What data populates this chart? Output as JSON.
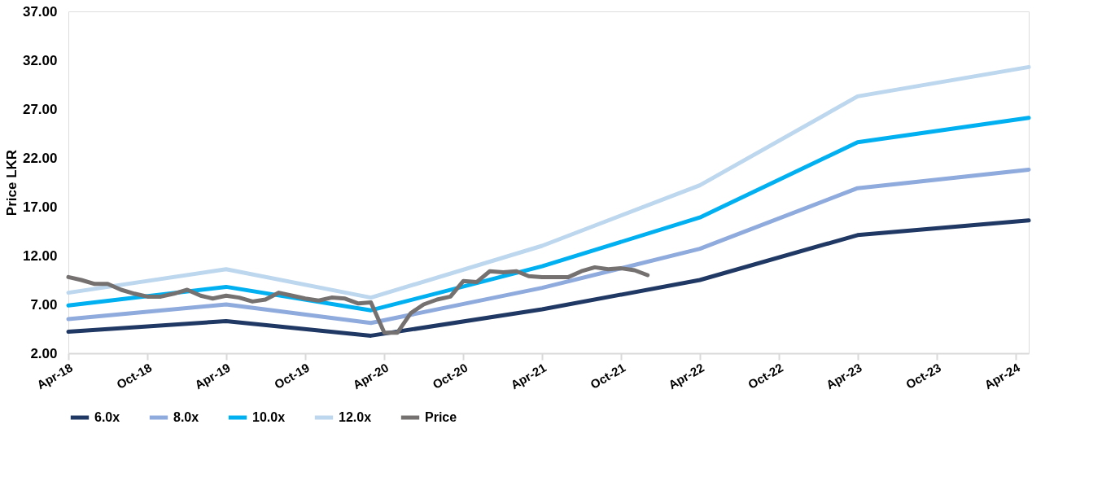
{
  "chart_data": {
    "type": "line",
    "ylabel": "Price LKR",
    "grid": false,
    "legend": "bottom",
    "xlim": [
      "2018-04",
      "2024-05"
    ],
    "xticks": [
      {
        "value": "2018-04",
        "label": "Apr-18"
      },
      {
        "value": "2018-10",
        "label": "Oct-18"
      },
      {
        "value": "2019-04",
        "label": "Apr-19"
      },
      {
        "value": "2019-10",
        "label": "Oct-19"
      },
      {
        "value": "2020-04",
        "label": "Apr-20"
      },
      {
        "value": "2020-10",
        "label": "Oct-20"
      },
      {
        "value": "2021-04",
        "label": "Apr-21"
      },
      {
        "value": "2021-10",
        "label": "Oct-21"
      },
      {
        "value": "2022-04",
        "label": "Apr-22"
      },
      {
        "value": "2022-10",
        "label": "Oct-22"
      },
      {
        "value": "2023-04",
        "label": "Apr-23"
      },
      {
        "value": "2023-10",
        "label": "Oct-23"
      },
      {
        "value": "2024-04",
        "label": "Apr-24"
      }
    ],
    "ylim": [
      2,
      37
    ],
    "yticks": [
      {
        "value": 2,
        "label": "2.00"
      },
      {
        "value": 7,
        "label": "7.00"
      },
      {
        "value": 12,
        "label": "12.00"
      },
      {
        "value": 17,
        "label": "17.00"
      },
      {
        "value": 22,
        "label": "22.00"
      },
      {
        "value": 27,
        "label": "27.00"
      },
      {
        "value": 32,
        "label": "32.00"
      },
      {
        "value": 37,
        "label": "37.00"
      }
    ],
    "series": [
      {
        "name": "6.0x",
        "color": "#1f3864",
        "x": [
          "2018-04",
          "2019-04",
          "2020-03",
          "2021-04",
          "2022-04",
          "2023-04",
          "2024-05"
        ],
        "values": [
          4.2,
          5.3,
          3.8,
          6.5,
          9.5,
          14.1,
          15.6
        ]
      },
      {
        "name": "8.0x",
        "color": "#8faadc",
        "x": [
          "2018-04",
          "2019-04",
          "2020-03",
          "2021-04",
          "2022-04",
          "2023-04",
          "2024-05"
        ],
        "values": [
          5.5,
          7.0,
          5.1,
          8.7,
          12.7,
          18.9,
          20.8
        ]
      },
      {
        "name": "10.0x",
        "color": "#00b0f0",
        "x": [
          "2018-04",
          "2019-04",
          "2020-03",
          "2021-04",
          "2022-04",
          "2023-04",
          "2024-05"
        ],
        "values": [
          6.9,
          8.8,
          6.4,
          10.9,
          15.9,
          23.6,
          26.1
        ]
      },
      {
        "name": "12.0x",
        "color": "#bdd7ee",
        "x": [
          "2018-04",
          "2019-04",
          "2020-03",
          "2021-04",
          "2022-04",
          "2023-04",
          "2024-05"
        ],
        "values": [
          8.2,
          10.6,
          7.7,
          13.0,
          19.2,
          28.3,
          31.3
        ]
      },
      {
        "name": "Price",
        "color": "#767171",
        "x": [
          "2018-04",
          "2018-05",
          "2018-06",
          "2018-07",
          "2018-08",
          "2018-09",
          "2018-10",
          "2018-11",
          "2018-12",
          "2019-01",
          "2019-02",
          "2019-03",
          "2019-04",
          "2019-05",
          "2019-06",
          "2019-07",
          "2019-08",
          "2019-09",
          "2019-10",
          "2019-11",
          "2019-12",
          "2020-01",
          "2020-02",
          "2020-03",
          "2020-04",
          "2020-05",
          "2020-06",
          "2020-07",
          "2020-08",
          "2020-09",
          "2020-10",
          "2020-11",
          "2020-12",
          "2021-01",
          "2021-02",
          "2021-03",
          "2021-04",
          "2021-05",
          "2021-06",
          "2021-07",
          "2021-08",
          "2021-09",
          "2021-10",
          "2021-11",
          "2021-12"
        ],
        "values": [
          9.8,
          9.5,
          9.1,
          9.1,
          8.5,
          8.1,
          7.8,
          7.8,
          8.1,
          8.5,
          7.9,
          7.6,
          7.9,
          7.7,
          7.3,
          7.5,
          8.2,
          7.9,
          7.6,
          7.4,
          7.7,
          7.6,
          7.1,
          7.2,
          4.1,
          4.1,
          6.1,
          7.0,
          7.5,
          7.8,
          9.4,
          9.3,
          10.4,
          10.3,
          10.4,
          9.9,
          9.8,
          9.8,
          9.8,
          10.4,
          10.8,
          10.6,
          10.7,
          10.5,
          10.0
        ]
      }
    ]
  }
}
